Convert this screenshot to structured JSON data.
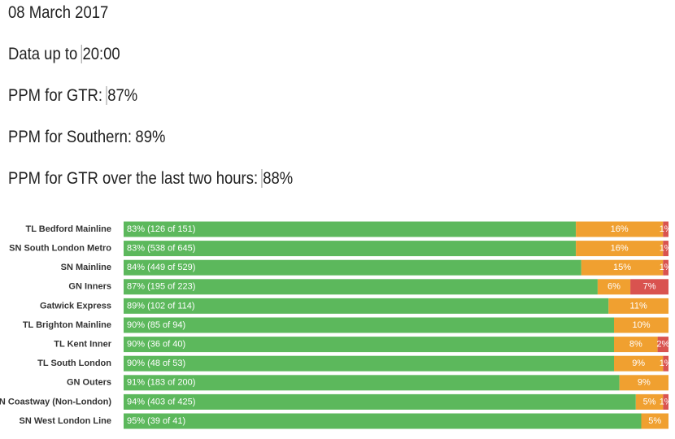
{
  "header": {
    "date": "08 March 2017",
    "lines": [
      {
        "label": "Data up to",
        "value": "20:00"
      },
      {
        "label": "PPM for GTR:",
        "value": "87%"
      },
      {
        "label": "PPM for Southern:",
        "value": "89%"
      },
      {
        "label": "PPM for GTR over the last two hours:",
        "value": "88%"
      }
    ]
  },
  "chart_data": {
    "type": "stacked-bar-horizontal",
    "categories": [
      "TL Bedford Mainline",
      "SN South London Metro",
      "SN Mainline",
      "GN Inners",
      "Gatwick Express",
      "TL Brighton Mainline",
      "TL Kent Inner",
      "TL South London",
      "GN Outers",
      "SN Coastway (Non-London)",
      "SN West London Line"
    ],
    "series": [
      {
        "color": "#5cb85c",
        "values": [
          83,
          83,
          84,
          87,
          89,
          90,
          90,
          90,
          91,
          94,
          95
        ],
        "value_labels": [
          "83% (126 of 151)",
          "83% (538 of 645)",
          "84% (449 of 529)",
          "87% (195 of 223)",
          "89% (102 of 114)",
          "90% (85 of 94)",
          "90% (36 of 40)",
          "90% (48 of 53)",
          "91% (183 of 200)",
          "94% (403 of 425)",
          "95% (39 of 41)"
        ]
      },
      {
        "color": "#f0a030",
        "values": [
          16,
          16,
          15,
          6,
          11,
          10,
          8,
          9,
          9,
          5,
          5
        ],
        "value_labels": [
          "16%",
          "16%",
          "15%",
          "6%",
          "11%",
          "10%",
          "8%",
          "9%",
          "9%",
          "5%",
          "5%"
        ]
      },
      {
        "color": "#d9534f",
        "values": [
          1,
          1,
          1,
          7,
          0,
          0,
          2,
          1,
          0,
          1,
          0
        ],
        "value_labels": [
          "1%",
          "1%",
          "1%",
          "7%",
          null,
          null,
          "2%",
          "1%",
          null,
          "1%",
          null
        ]
      }
    ]
  }
}
